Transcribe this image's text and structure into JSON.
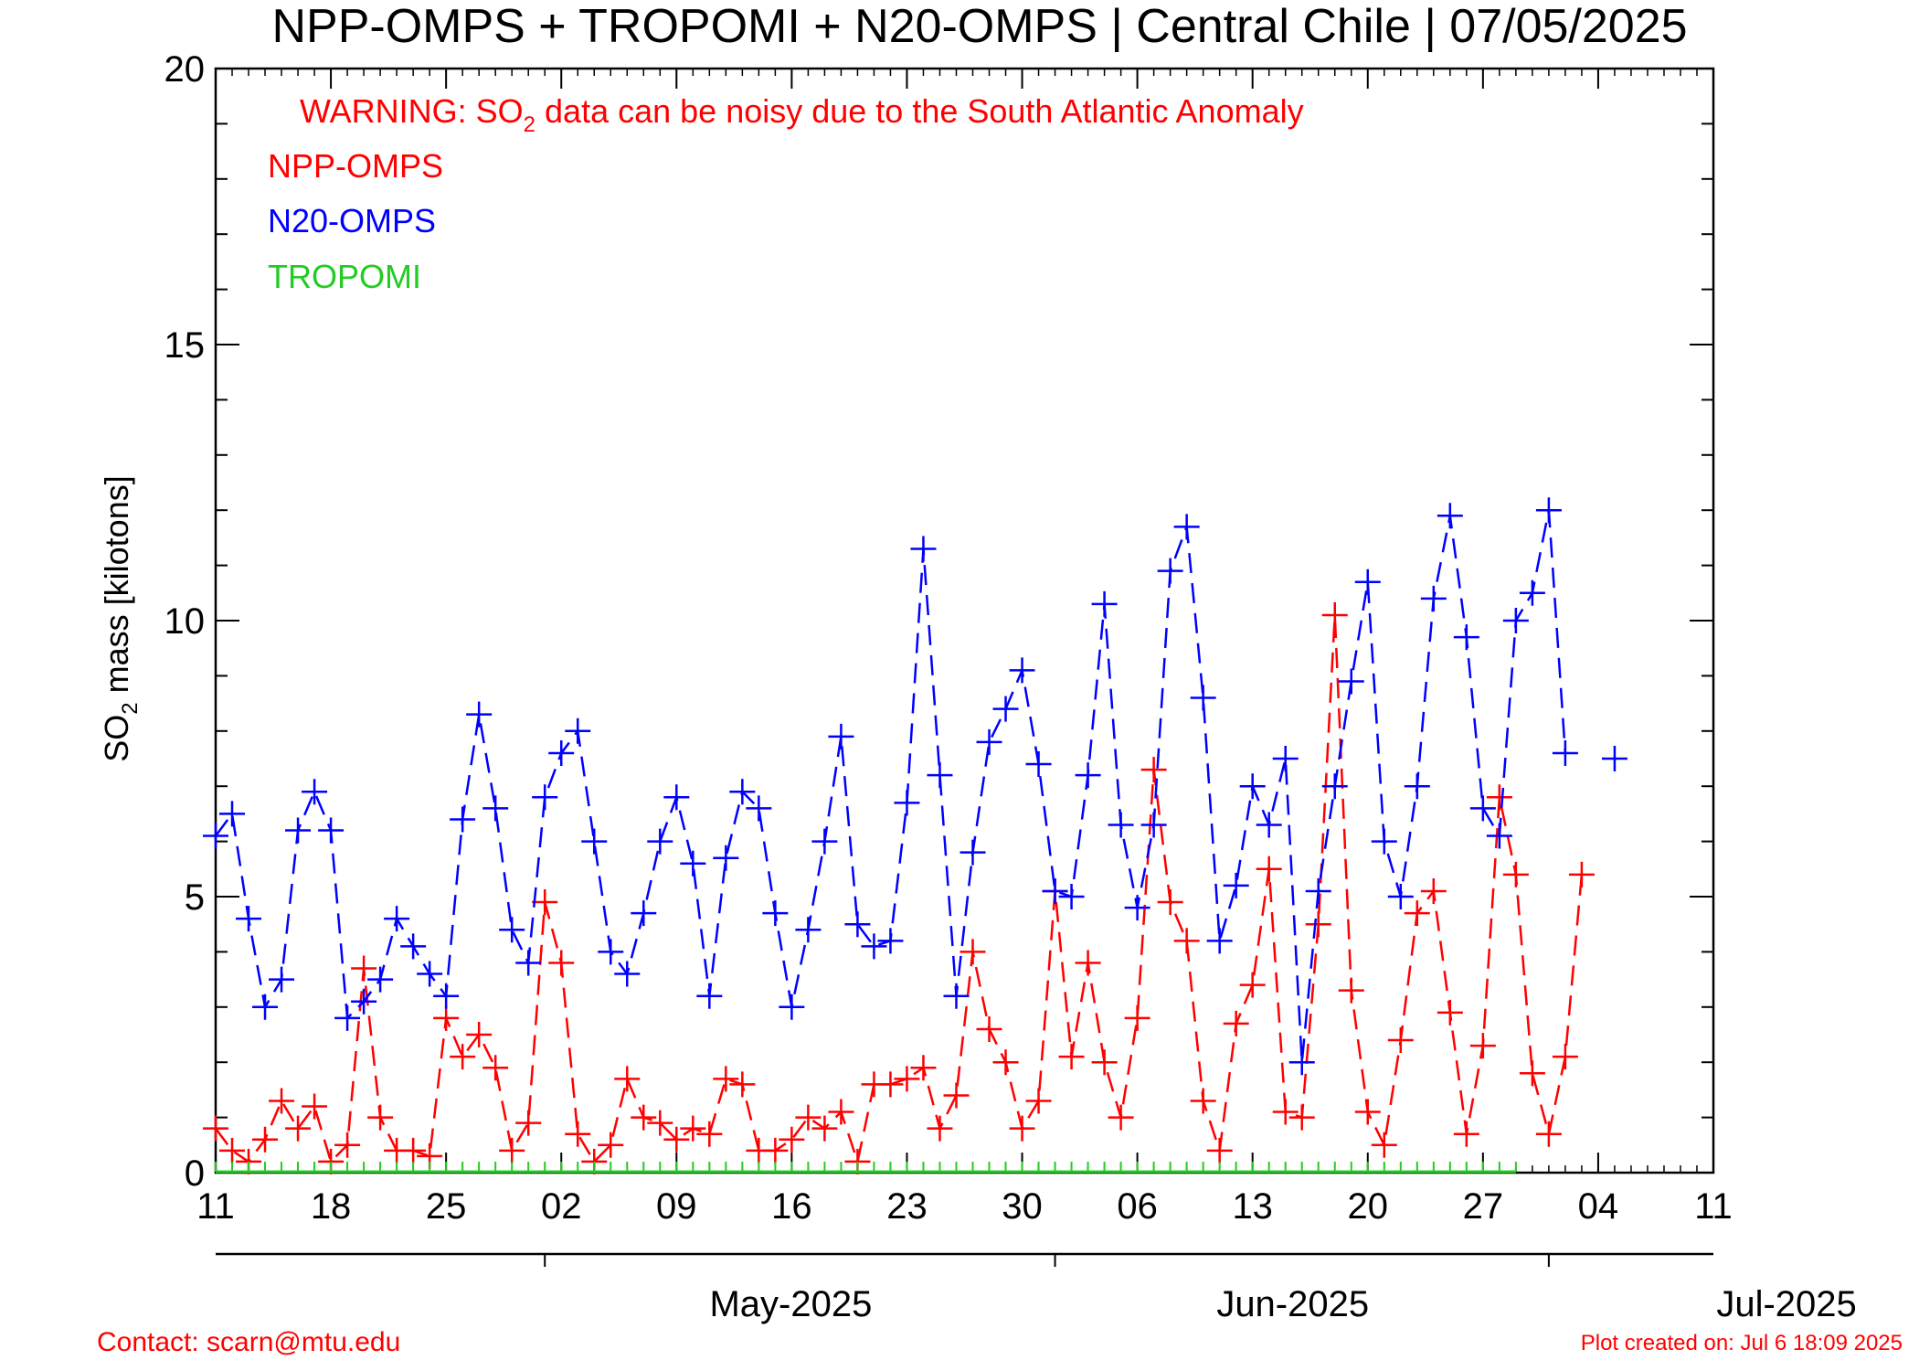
{
  "chart_data": {
    "type": "line",
    "title": "NPP-OMPS + TROPOMI + N20-OMPS | Central Chile | 07/05/2025",
    "ylabel_prefix": "SO",
    "ylabel_sub": "2",
    "ylabel_suffix": " mass [kilotons]",
    "ylim": [
      0,
      20
    ],
    "yticks": [
      0,
      5,
      10,
      15,
      20
    ],
    "ytick_labels": [
      "0",
      "5",
      "10",
      "15",
      "20"
    ],
    "x_start": "2025-04-11",
    "x_end": "2025-07-11",
    "xtick_dates": [
      "2025-04-11",
      "2025-04-18",
      "2025-04-25",
      "2025-05-02",
      "2025-05-09",
      "2025-05-16",
      "2025-05-23",
      "2025-05-30",
      "2025-06-06",
      "2025-06-13",
      "2025-06-20",
      "2025-06-27",
      "2025-07-04",
      "2025-07-11"
    ],
    "xtick_labels": [
      "11",
      "18",
      "25",
      "02",
      "09",
      "16",
      "23",
      "30",
      "06",
      "13",
      "20",
      "27",
      "04",
      "11"
    ],
    "month_dates": [
      "2025-05-01",
      "2025-06-01",
      "2025-07-01"
    ],
    "month_labels": [
      "May-2025",
      "Jun-2025",
      "Jul-2025"
    ],
    "grid": false,
    "legend_position": "top-left",
    "warning_prefix": "WARNING: SO",
    "warning_sub": "2",
    "warning_suffix": " data can be noisy due to the South Atlantic Anomaly",
    "series": [
      {
        "name": "NPP-OMPS",
        "color": "#ff0000",
        "x": [
          "2025-04-11",
          "2025-04-12",
          "2025-04-13",
          "2025-04-14",
          "2025-04-15",
          "2025-04-16",
          "2025-04-17",
          "2025-04-18",
          "2025-04-19",
          "2025-04-20",
          "2025-04-21",
          "2025-04-22",
          "2025-04-23",
          "2025-04-24",
          "2025-04-25",
          "2025-04-26",
          "2025-04-27",
          "2025-04-28",
          "2025-04-29",
          "2025-04-30",
          "2025-05-01",
          "2025-05-02",
          "2025-05-03",
          "2025-05-04",
          "2025-05-05",
          "2025-05-06",
          "2025-05-07",
          "2025-05-08",
          "2025-05-09",
          "2025-05-10",
          "2025-05-11",
          "2025-05-12",
          "2025-05-13",
          "2025-05-14",
          "2025-05-15",
          "2025-05-16",
          "2025-05-17",
          "2025-05-18",
          "2025-05-19",
          "2025-05-20",
          "2025-05-21",
          "2025-05-22",
          "2025-05-23",
          "2025-05-24",
          "2025-05-25",
          "2025-05-26",
          "2025-05-27",
          "2025-05-28",
          "2025-05-29",
          "2025-05-30",
          "2025-05-31",
          "2025-06-01",
          "2025-06-02",
          "2025-06-03",
          "2025-06-04",
          "2025-06-05",
          "2025-06-06",
          "2025-06-07",
          "2025-06-08",
          "2025-06-09",
          "2025-06-10",
          "2025-06-11",
          "2025-06-12",
          "2025-06-13",
          "2025-06-14",
          "2025-06-15",
          "2025-06-16",
          "2025-06-17",
          "2025-06-18",
          "2025-06-19",
          "2025-06-20",
          "2025-06-21",
          "2025-06-22",
          "2025-06-23",
          "2025-06-24",
          "2025-06-25",
          "2025-06-26",
          "2025-06-27",
          "2025-06-28",
          "2025-06-29",
          "2025-06-30",
          "2025-07-01",
          "2025-07-02",
          "2025-07-03"
        ],
        "values": [
          0.8,
          0.4,
          0.2,
          0.6,
          1.3,
          0.8,
          1.2,
          0.2,
          0.5,
          3.7,
          1.0,
          0.4,
          0.4,
          0.3,
          2.8,
          2.1,
          2.5,
          1.9,
          0.4,
          0.9,
          4.9,
          3.8,
          0.7,
          0.2,
          0.5,
          1.7,
          1.0,
          0.9,
          0.6,
          0.8,
          0.7,
          1.7,
          1.6,
          0.4,
          0.4,
          0.6,
          1.0,
          0.8,
          1.1,
          0.2,
          1.6,
          1.6,
          1.7,
          1.9,
          0.8,
          1.4,
          4.0,
          2.6,
          2.0,
          0.8,
          1.3,
          5.1,
          2.1,
          3.8,
          2.0,
          1.0,
          2.8,
          7.3,
          4.9,
          4.2,
          1.3,
          0.4,
          2.7,
          3.4,
          5.5,
          1.1,
          1.0,
          4.5,
          10.1,
          3.3,
          1.1,
          0.5,
          2.4,
          4.7,
          5.1,
          2.9,
          0.7,
          2.3,
          6.8,
          5.4,
          1.8,
          0.7,
          2.1,
          5.4
        ]
      },
      {
        "name": "N20-OMPS",
        "color": "#0000ff",
        "x": [
          "2025-04-11",
          "2025-04-12",
          "2025-04-13",
          "2025-04-14",
          "2025-04-15",
          "2025-04-16",
          "2025-04-17",
          "2025-04-18",
          "2025-04-19",
          "2025-04-20",
          "2025-04-21",
          "2025-04-22",
          "2025-04-23",
          "2025-04-24",
          "2025-04-25",
          "2025-04-26",
          "2025-04-27",
          "2025-04-28",
          "2025-04-29",
          "2025-04-30",
          "2025-05-01",
          "2025-05-02",
          "2025-05-03",
          "2025-05-04",
          "2025-05-05",
          "2025-05-06",
          "2025-05-07",
          "2025-05-08",
          "2025-05-09",
          "2025-05-10",
          "2025-05-11",
          "2025-05-12",
          "2025-05-13",
          "2025-05-14",
          "2025-05-15",
          "2025-05-16",
          "2025-05-17",
          "2025-05-18",
          "2025-05-19",
          "2025-05-20",
          "2025-05-21",
          "2025-05-22",
          "2025-05-23",
          "2025-05-24",
          "2025-05-25",
          "2025-05-26",
          "2025-05-27",
          "2025-05-28",
          "2025-05-29",
          "2025-05-30",
          "2025-05-31",
          "2025-06-01",
          "2025-06-02",
          "2025-06-03",
          "2025-06-04",
          "2025-06-05",
          "2025-06-06",
          "2025-06-07",
          "2025-06-08",
          "2025-06-09",
          "2025-06-10",
          "2025-06-11",
          "2025-06-12",
          "2025-06-13",
          "2025-06-14",
          "2025-06-15",
          "2025-06-16",
          "2025-06-17",
          "2025-06-18",
          "2025-06-19",
          "2025-06-20",
          "2025-06-21",
          "2025-06-22",
          "2025-06-23",
          "2025-06-24",
          "2025-06-25",
          "2025-06-26",
          "2025-06-27",
          "2025-06-28",
          "2025-06-29",
          "2025-06-30",
          "2025-07-01",
          "2025-07-02",
          "2025-07-05"
        ],
        "values": [
          6.1,
          6.5,
          4.6,
          3.0,
          3.5,
          6.2,
          6.9,
          6.2,
          2.8,
          3.1,
          3.5,
          4.6,
          4.1,
          3.6,
          3.2,
          6.4,
          8.3,
          6.6,
          4.4,
          3.8,
          6.8,
          7.6,
          8.0,
          6.0,
          4.0,
          3.6,
          4.7,
          6.0,
          6.8,
          5.6,
          3.2,
          5.7,
          6.9,
          6.6,
          4.7,
          3.0,
          4.4,
          6.0,
          7.9,
          4.5,
          4.1,
          4.2,
          6.7,
          11.3,
          7.2,
          3.2,
          5.8,
          7.8,
          8.4,
          9.1,
          7.4,
          5.1,
          5.0,
          7.2,
          10.3,
          6.3,
          4.8,
          6.3,
          10.9,
          11.7,
          8.6,
          4.2,
          5.2,
          7.0,
          6.3,
          7.5,
          2.0,
          5.1,
          7.0,
          8.9,
          10.7,
          6.0,
          5.0,
          7.0,
          10.4,
          11.9,
          9.7,
          6.6,
          6.1,
          10.0,
          10.5,
          12.0,
          7.6,
          7.5
        ]
      },
      {
        "name": "TROPOMI",
        "color": "#22cc22",
        "x_start": "2025-04-11",
        "x_end": "2025-06-29",
        "values": [
          0.0
        ]
      }
    ]
  },
  "footer": {
    "contact": "Contact: scarn@mtu.edu",
    "created": "Plot created on: Jul  6 18:09 2025"
  }
}
